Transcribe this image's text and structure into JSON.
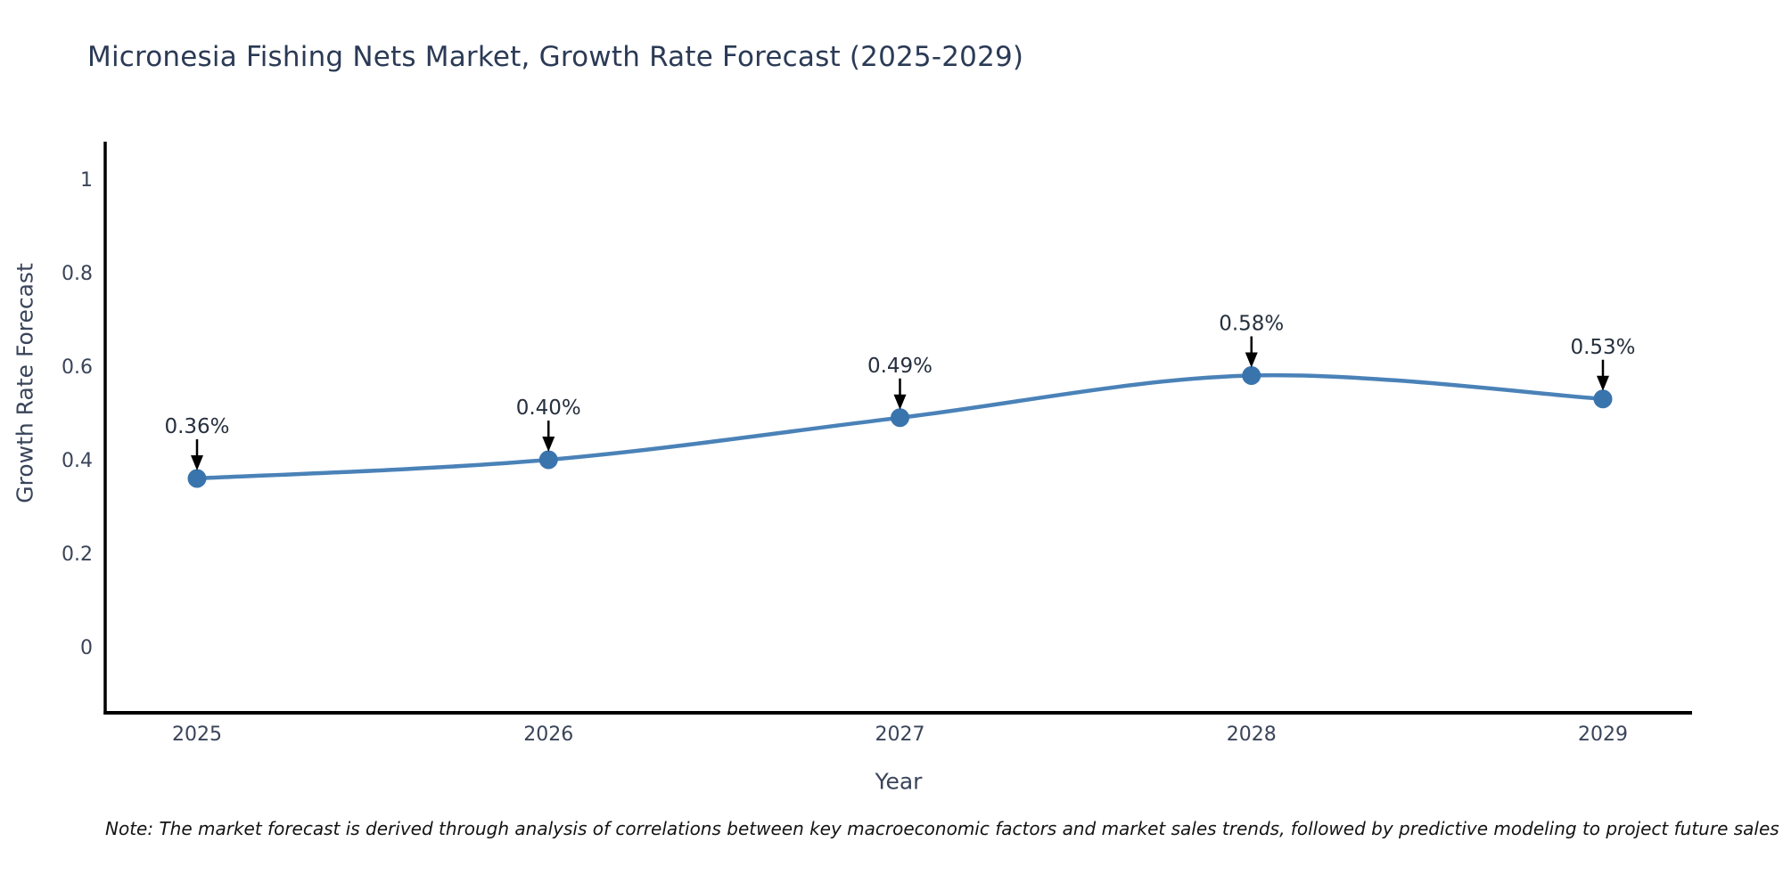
{
  "page": {
    "title": "Micronesia Fishing Nets Market, Growth Rate Forecast (2025-2029)",
    "note": "Note: The market forecast is derived through analysis of correlations between key macroeconomic factors and market sales trends, followed by predictive modeling to project future sales"
  },
  "chart_data": {
    "type": "line",
    "title": "Micronesia Fishing Nets Market, Growth Rate Forecast (2025-2029)",
    "xlabel": "Year",
    "ylabel": "Growth Rate Forecast",
    "categories": [
      "2025",
      "2026",
      "2027",
      "2028",
      "2029"
    ],
    "series": [
      {
        "name": "Growth Rate Forecast",
        "values": [
          0.36,
          0.4,
          0.49,
          0.58,
          0.53
        ],
        "point_labels": [
          "0.36%",
          "0.40%",
          "0.49%",
          "0.58%",
          "0.53%"
        ]
      }
    ],
    "y_ticks": [
      0,
      0.2,
      0.4,
      0.6,
      0.8,
      1
    ],
    "ylim": [
      -0.14,
      1.08
    ],
    "grid": false,
    "legend_position": "none",
    "line_shape": "spline",
    "colors": {
      "line": "#4a82b8",
      "marker": "#3a74ad",
      "axis": "#000000",
      "tick_text": "#3a4459",
      "annotation_text": "#26303e",
      "annotation_arrow": "#000000"
    }
  }
}
